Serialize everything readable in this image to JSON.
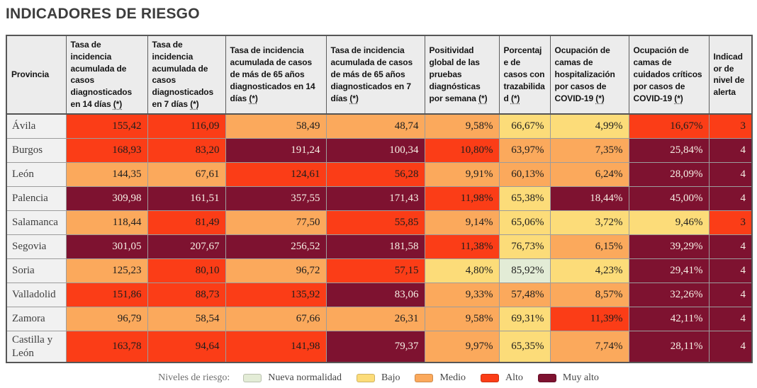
{
  "title": "INDICADORES DE RIESGO",
  "footnote_marker": "(*)",
  "colors": {
    "nueva_normalidad": "#e3ecd6",
    "bajo": "#fcdc79",
    "medio": "#fba95c",
    "alto": "#fb3d17",
    "muy_alto": "#7e1230",
    "muy_alto_text": "#f7f1e6",
    "default_text": "#1d1d1d",
    "header_bg": "#ececec",
    "province_bg": "#f1f1f1"
  },
  "legend": {
    "label": "Niveles de riesgo:",
    "items": [
      {
        "label": "Nueva normalidad",
        "level": "nueva_normalidad"
      },
      {
        "label": "Bajo",
        "level": "bajo"
      },
      {
        "label": "Medio",
        "level": "medio"
      },
      {
        "label": "Alto",
        "level": "alto"
      },
      {
        "label": "Muy alto",
        "level": "muy_alto"
      }
    ]
  },
  "chart_data": {
    "type": "table",
    "title": "INDICADORES DE RIESGO",
    "columns": [
      {
        "label": "Provincia",
        "footnote": false
      },
      {
        "label": "Tasa de incidencia acumulada de casos diagnosticados en 14 días",
        "footnote": true
      },
      {
        "label": "Tasa de incidencia acumulada de casos diagnosticados en 7 días",
        "footnote": true
      },
      {
        "label": "Tasa de incidencia acumulada de casos de más de 65 años diagnosticados en 14 días",
        "footnote": true
      },
      {
        "label": "Tasa de incidencia acumulada de casos de más de 65 años diagnosticados en 7 días",
        "footnote": true
      },
      {
        "label": "Positividad global de las pruebas diagnósticas por semana",
        "footnote": true
      },
      {
        "label": "Porcentaje de casos con trazabilidad",
        "footnote": true
      },
      {
        "label": "Ocupación de camas de hospitalización por casos de COVID-19",
        "footnote": true
      },
      {
        "label": "Ocupación de camas de cuidados críticos por casos de COVID-19",
        "footnote": true
      },
      {
        "label": "Indicador de nivel de alerta",
        "footnote": false
      }
    ],
    "rows": [
      {
        "province": "Ávila",
        "cells": [
          {
            "value": "155,42",
            "level": "alto"
          },
          {
            "value": "116,09",
            "level": "alto"
          },
          {
            "value": "58,49",
            "level": "medio"
          },
          {
            "value": "48,74",
            "level": "medio"
          },
          {
            "value": "9,58%",
            "level": "medio"
          },
          {
            "value": "66,67%",
            "level": "bajo"
          },
          {
            "value": "4,99%",
            "level": "bajo"
          },
          {
            "value": "16,67%",
            "level": "alto"
          },
          {
            "value": "3",
            "level": "alto"
          }
        ]
      },
      {
        "province": "Burgos",
        "cells": [
          {
            "value": "168,93",
            "level": "alto"
          },
          {
            "value": "83,20",
            "level": "alto"
          },
          {
            "value": "191,24",
            "level": "muy_alto"
          },
          {
            "value": "100,34",
            "level": "muy_alto"
          },
          {
            "value": "10,80%",
            "level": "alto"
          },
          {
            "value": "63,97%",
            "level": "medio"
          },
          {
            "value": "7,35%",
            "level": "medio"
          },
          {
            "value": "25,84%",
            "level": "muy_alto"
          },
          {
            "value": "4",
            "level": "muy_alto"
          }
        ]
      },
      {
        "province": "León",
        "cells": [
          {
            "value": "144,35",
            "level": "medio"
          },
          {
            "value": "67,61",
            "level": "medio"
          },
          {
            "value": "124,61",
            "level": "alto"
          },
          {
            "value": "56,28",
            "level": "alto"
          },
          {
            "value": "9,91%",
            "level": "medio"
          },
          {
            "value": "60,13%",
            "level": "medio"
          },
          {
            "value": "6,24%",
            "level": "medio"
          },
          {
            "value": "28,09%",
            "level": "muy_alto"
          },
          {
            "value": "4",
            "level": "muy_alto"
          }
        ]
      },
      {
        "province": "Palencia",
        "cells": [
          {
            "value": "309,98",
            "level": "muy_alto"
          },
          {
            "value": "161,51",
            "level": "muy_alto"
          },
          {
            "value": "357,55",
            "level": "muy_alto"
          },
          {
            "value": "171,43",
            "level": "muy_alto"
          },
          {
            "value": "11,98%",
            "level": "alto"
          },
          {
            "value": "65,38%",
            "level": "bajo"
          },
          {
            "value": "18,44%",
            "level": "muy_alto"
          },
          {
            "value": "45,00%",
            "level": "muy_alto"
          },
          {
            "value": "4",
            "level": "muy_alto"
          }
        ]
      },
      {
        "province": "Salamanca",
        "cells": [
          {
            "value": "118,44",
            "level": "medio"
          },
          {
            "value": "81,49",
            "level": "alto"
          },
          {
            "value": "77,50",
            "level": "medio"
          },
          {
            "value": "55,85",
            "level": "alto"
          },
          {
            "value": "9,14%",
            "level": "medio"
          },
          {
            "value": "65,06%",
            "level": "bajo"
          },
          {
            "value": "3,72%",
            "level": "bajo"
          },
          {
            "value": "9,46%",
            "level": "bajo"
          },
          {
            "value": "3",
            "level": "alto"
          }
        ]
      },
      {
        "province": "Segovia",
        "cells": [
          {
            "value": "301,05",
            "level": "muy_alto"
          },
          {
            "value": "207,67",
            "level": "muy_alto"
          },
          {
            "value": "256,52",
            "level": "muy_alto"
          },
          {
            "value": "181,58",
            "level": "muy_alto"
          },
          {
            "value": "11,38%",
            "level": "alto"
          },
          {
            "value": "76,73%",
            "level": "bajo"
          },
          {
            "value": "6,15%",
            "level": "medio"
          },
          {
            "value": "39,29%",
            "level": "muy_alto"
          },
          {
            "value": "4",
            "level": "muy_alto"
          }
        ]
      },
      {
        "province": "Soria",
        "cells": [
          {
            "value": "125,23",
            "level": "medio"
          },
          {
            "value": "80,10",
            "level": "alto"
          },
          {
            "value": "96,72",
            "level": "medio"
          },
          {
            "value": "57,15",
            "level": "alto"
          },
          {
            "value": "4,80%",
            "level": "bajo"
          },
          {
            "value": "85,92%",
            "level": "nueva_normalidad"
          },
          {
            "value": "4,23%",
            "level": "bajo"
          },
          {
            "value": "29,41%",
            "level": "muy_alto"
          },
          {
            "value": "4",
            "level": "muy_alto"
          }
        ]
      },
      {
        "province": "Valladolid",
        "cells": [
          {
            "value": "151,86",
            "level": "alto"
          },
          {
            "value": "88,73",
            "level": "alto"
          },
          {
            "value": "135,92",
            "level": "alto"
          },
          {
            "value": "83,06",
            "level": "muy_alto"
          },
          {
            "value": "9,33%",
            "level": "medio"
          },
          {
            "value": "57,48%",
            "level": "medio"
          },
          {
            "value": "8,57%",
            "level": "medio"
          },
          {
            "value": "32,26%",
            "level": "muy_alto"
          },
          {
            "value": "4",
            "level": "muy_alto"
          }
        ]
      },
      {
        "province": "Zamora",
        "cells": [
          {
            "value": "96,79",
            "level": "medio"
          },
          {
            "value": "58,54",
            "level": "medio"
          },
          {
            "value": "67,66",
            "level": "medio"
          },
          {
            "value": "26,31",
            "level": "medio"
          },
          {
            "value": "9,58%",
            "level": "medio"
          },
          {
            "value": "69,31%",
            "level": "bajo"
          },
          {
            "value": "11,39%",
            "level": "alto"
          },
          {
            "value": "42,11%",
            "level": "muy_alto"
          },
          {
            "value": "4",
            "level": "muy_alto"
          }
        ]
      },
      {
        "province": "Castilla y León",
        "cells": [
          {
            "value": "163,78",
            "level": "alto"
          },
          {
            "value": "94,64",
            "level": "alto"
          },
          {
            "value": "141,98",
            "level": "alto"
          },
          {
            "value": "79,37",
            "level": "muy_alto"
          },
          {
            "value": "9,97%",
            "level": "medio"
          },
          {
            "value": "65,35%",
            "level": "bajo"
          },
          {
            "value": "7,74%",
            "level": "medio"
          },
          {
            "value": "28,11%",
            "level": "muy_alto"
          },
          {
            "value": "4",
            "level": "muy_alto"
          }
        ]
      }
    ]
  }
}
